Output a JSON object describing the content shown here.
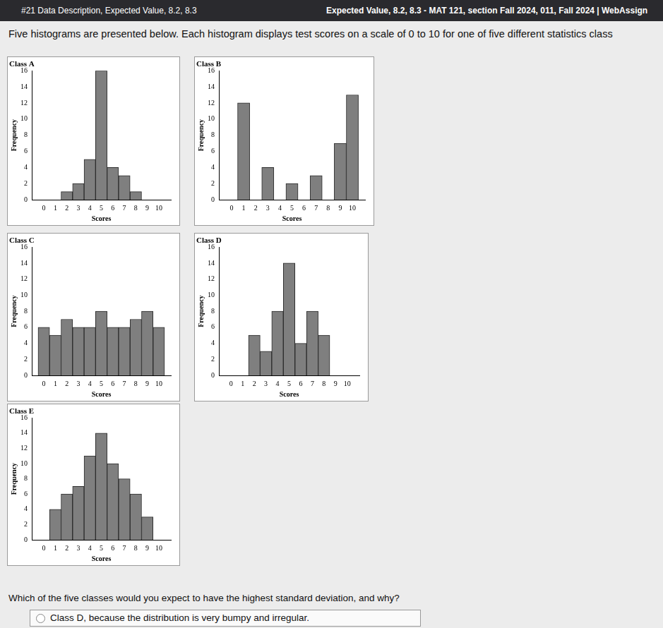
{
  "page": {
    "tab_left": "#21 Data Description, Expected Value, 8.2, 8.3",
    "tab_right": "Expected Value, 8.2, 8.3 - MAT 121, section Fall 2024, 011, Fall 2024 | WebAssign",
    "intro": "Five histograms are presented below. Each histogram displays test scores on a scale of 0 to 10 for one of five different statistics class",
    "question": "Which of the five classes would you expect to have the highest standard deviation, and why?",
    "option": "Class D, because the distribution is very bumpy and irregular."
  },
  "chart_data": [
    {
      "type": "histogram",
      "title": "Class A",
      "x_label": "Scores",
      "y_label": "Frequency",
      "bins": [
        -0.5,
        0.5,
        1.5,
        2.5,
        3.5,
        4.5,
        5.5,
        6.5,
        7.5,
        8.5,
        9.5,
        10.5
      ],
      "counts": [
        0,
        0,
        1,
        2,
        5,
        16,
        4,
        3,
        1,
        0,
        0
      ],
      "color": "#7f7f7f",
      "xlim": [
        -0.5,
        10.5
      ],
      "xticks": [
        0,
        1,
        2,
        3,
        4,
        5,
        6,
        7,
        8,
        9,
        10
      ],
      "ylim": [
        0,
        16
      ],
      "yticks": [
        0,
        2,
        4,
        6,
        8,
        10,
        12,
        14,
        16
      ],
      "grid": false
    },
    {
      "type": "histogram",
      "title": "Class B",
      "x_label": "Scores",
      "y_label": "Frequency",
      "bins": [
        -0.5,
        0.5,
        1.5,
        2.5,
        3.5,
        4.5,
        5.5,
        6.5,
        7.5,
        8.5,
        9.5,
        10.5
      ],
      "counts": [
        0,
        12,
        0,
        4,
        0,
        2,
        0,
        3,
        0,
        7,
        13
      ],
      "color": "#7f7f7f",
      "xlim": [
        -0.5,
        10.5
      ],
      "xticks": [
        0,
        1,
        2,
        3,
        4,
        5,
        6,
        7,
        8,
        9,
        10
      ],
      "ylim": [
        0,
        16
      ],
      "yticks": [
        0,
        2,
        4,
        6,
        8,
        10,
        12,
        14,
        16
      ],
      "grid": false
    },
    {
      "type": "histogram",
      "title": "Class C",
      "x_label": "Scores",
      "y_label": "Frequency",
      "bins": [
        -0.5,
        0.5,
        1.5,
        2.5,
        3.5,
        4.5,
        5.5,
        6.5,
        7.5,
        8.5,
        9.5,
        10.5
      ],
      "counts": [
        6,
        5,
        7,
        6,
        6,
        8,
        6,
        6,
        7,
        8,
        6
      ],
      "color": "#7f7f7f",
      "xlim": [
        -0.5,
        10.5
      ],
      "xticks": [
        0,
        1,
        2,
        3,
        4,
        5,
        6,
        7,
        8,
        9,
        10
      ],
      "ylim": [
        0,
        16
      ],
      "yticks": [
        0,
        2,
        4,
        6,
        8,
        10,
        12,
        14,
        16
      ],
      "grid": false
    },
    {
      "type": "histogram",
      "title": "Class D",
      "x_label": "Scores",
      "y_label": "Frequency",
      "bins": [
        -0.5,
        0.5,
        1.5,
        2.5,
        3.5,
        4.5,
        5.5,
        6.5,
        7.5,
        8.5,
        9.5,
        10.5
      ],
      "counts": [
        0,
        0,
        5,
        3,
        8,
        14,
        4,
        8,
        5,
        0,
        0
      ],
      "color": "#7f7f7f",
      "xlim": [
        -0.5,
        10.5
      ],
      "xticks": [
        0,
        1,
        2,
        3,
        4,
        5,
        6,
        7,
        8,
        9,
        10
      ],
      "ylim": [
        0,
        16
      ],
      "yticks": [
        0,
        2,
        4,
        6,
        8,
        10,
        12,
        14,
        16
      ],
      "grid": false
    },
    {
      "type": "histogram",
      "title": "Class E",
      "x_label": "Scores",
      "y_label": "Frequency",
      "bins": [
        -0.5,
        0.5,
        1.5,
        2.5,
        3.5,
        4.5,
        5.5,
        6.5,
        7.5,
        8.5,
        9.5,
        10.5
      ],
      "counts": [
        0,
        4,
        6,
        7,
        11,
        14,
        10,
        8,
        6,
        3,
        0
      ],
      "color": "#7f7f7f",
      "xlim": [
        -0.5,
        10.5
      ],
      "xticks": [
        0,
        1,
        2,
        3,
        4,
        5,
        6,
        7,
        8,
        9,
        10
      ],
      "ylim": [
        0,
        16
      ],
      "yticks": [
        0,
        2,
        4,
        6,
        8,
        10,
        12,
        14,
        16
      ],
      "grid": false
    }
  ]
}
